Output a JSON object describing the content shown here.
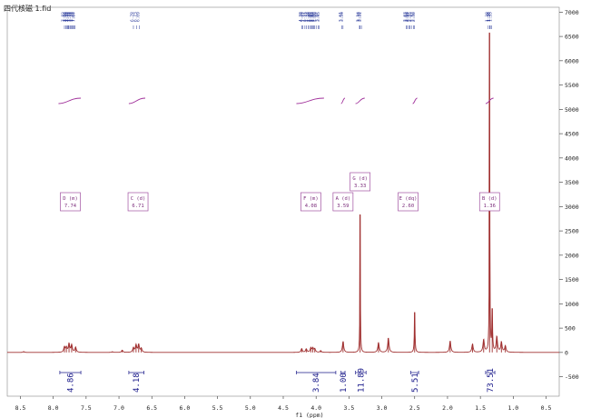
{
  "title": "四代核磁 1.fid",
  "chart_data": {
    "type": "line",
    "xlabel": "f1 (ppm)",
    "ylabel": "",
    "xlim": [
      8.7,
      0.3
    ],
    "ylim": [
      -900,
      7100
    ],
    "x_reversed": true,
    "grid": false,
    "x_ticks": [
      8.5,
      8.0,
      7.5,
      7.0,
      6.5,
      6.0,
      5.5,
      5.0,
      4.5,
      4.0,
      3.5,
      3.0,
      2.5,
      2.0,
      1.5,
      1.0,
      0.5
    ],
    "x_tick_labels": [
      "8.5",
      "8.0",
      "7.5",
      "7.0",
      "6.5",
      "6.0",
      "5.5",
      "5.0",
      "4.5",
      "4.0",
      "3.5",
      "3.0",
      "2.5",
      "2.0",
      "1.5",
      "1.0",
      "0.5"
    ],
    "y_ticks": [
      7000,
      6500,
      6000,
      5500,
      5000,
      4500,
      4000,
      3500,
      3000,
      2500,
      2000,
      1500,
      1000,
      500,
      0,
      -500
    ],
    "y_tick_labels": [
      "7000",
      "6500",
      "6000",
      "5500",
      "5000",
      "4500",
      "4000",
      "3500",
      "3000",
      "2500",
      "2000",
      "1500",
      "1000",
      "500",
      "0",
      "-500"
    ],
    "series": [
      {
        "color": "#a03030",
        "baseline_y": 0,
        "peaks": [
          {
            "x": 8.45,
            "h": 18
          },
          {
            "x": 7.83,
            "h": 110
          },
          {
            "x": 7.8,
            "h": 95
          },
          {
            "x": 7.76,
            "h": 175
          },
          {
            "x": 7.72,
            "h": 150
          },
          {
            "x": 7.66,
            "h": 105
          },
          {
            "x": 7.1,
            "h": 14
          },
          {
            "x": 6.95,
            "h": 45
          },
          {
            "x": 6.78,
            "h": 95
          },
          {
            "x": 6.74,
            "h": 150
          },
          {
            "x": 6.7,
            "h": 160
          },
          {
            "x": 6.66,
            "h": 80
          },
          {
            "x": 4.22,
            "h": 75
          },
          {
            "x": 4.15,
            "h": 70
          },
          {
            "x": 4.08,
            "h": 90
          },
          {
            "x": 4.05,
            "h": 85
          },
          {
            "x": 4.02,
            "h": 70
          },
          {
            "x": 3.93,
            "h": 35
          },
          {
            "x": 3.59,
            "h": 220
          },
          {
            "x": 3.33,
            "h": 2830
          },
          {
            "x": 3.05,
            "h": 200
          },
          {
            "x": 2.9,
            "h": 290
          },
          {
            "x": 2.5,
            "h": 820
          },
          {
            "x": 1.96,
            "h": 230
          },
          {
            "x": 1.62,
            "h": 170
          },
          {
            "x": 1.45,
            "h": 260
          },
          {
            "x": 1.36,
            "h": 6570
          },
          {
            "x": 1.32,
            "h": 900
          },
          {
            "x": 1.25,
            "h": 320
          },
          {
            "x": 1.18,
            "h": 210
          },
          {
            "x": 1.12,
            "h": 130
          }
        ]
      }
    ],
    "peak_ticks": [
      {
        "x": 7.83,
        "label": "7.83"
      },
      {
        "x": 7.81,
        "label": "7.81"
      },
      {
        "x": 7.79,
        "label": "7.79"
      },
      {
        "x": 7.78,
        "label": "7.78"
      },
      {
        "x": 7.77,
        "label": "7.77"
      },
      {
        "x": 7.76,
        "label": "7.76"
      },
      {
        "x": 7.74,
        "label": "7.74"
      },
      {
        "x": 7.73,
        "label": "7.73"
      },
      {
        "x": 7.71,
        "label": "7.71"
      },
      {
        "x": 7.7,
        "label": "7.70"
      },
      {
        "x": 7.68,
        "label": "7.68"
      },
      {
        "x": 7.67,
        "label": "7.67"
      },
      {
        "x": 6.78,
        "label": "6.78"
      },
      {
        "x": 6.73,
        "label": "6.73"
      },
      {
        "x": 6.69,
        "label": "6.69"
      },
      {
        "x": 4.22,
        "label": "4.22"
      },
      {
        "x": 4.2,
        "label": "4.20"
      },
      {
        "x": 4.17,
        "label": "4.17"
      },
      {
        "x": 4.15,
        "label": "4.15"
      },
      {
        "x": 4.12,
        "label": "4.12"
      },
      {
        "x": 4.1,
        "label": "4.10"
      },
      {
        "x": 4.08,
        "label": "4.08"
      },
      {
        "x": 4.07,
        "label": "4.07"
      },
      {
        "x": 4.05,
        "label": "4.05"
      },
      {
        "x": 4.04,
        "label": "4.04"
      },
      {
        "x": 4.02,
        "label": "4.02"
      },
      {
        "x": 4.0,
        "label": "4.00"
      },
      {
        "x": 3.97,
        "label": "3.97"
      },
      {
        "x": 3.95,
        "label": "3.95"
      },
      {
        "x": 3.61,
        "label": "3.61"
      },
      {
        "x": 3.59,
        "label": "3.59"
      },
      {
        "x": 3.34,
        "label": "3.34"
      },
      {
        "x": 3.33,
        "label": "3.33"
      },
      {
        "x": 3.31,
        "label": "3.31"
      },
      {
        "x": 2.63,
        "label": "2.63"
      },
      {
        "x": 2.61,
        "label": "2.61"
      },
      {
        "x": 2.59,
        "label": "2.59"
      },
      {
        "x": 2.57,
        "label": "2.57"
      },
      {
        "x": 2.55,
        "label": "2.55"
      },
      {
        "x": 2.52,
        "label": "2.52"
      },
      {
        "x": 2.5,
        "label": "2.50"
      },
      {
        "x": 1.38,
        "label": "1.38"
      },
      {
        "x": 1.36,
        "label": "1.36"
      },
      {
        "x": 1.35,
        "label": "1.35"
      },
      {
        "x": 1.33,
        "label": "1.33"
      }
    ],
    "multiplet_boxes": [
      {
        "x": 7.74,
        "line1": "D (m)",
        "line2": "7.74"
      },
      {
        "x": 6.71,
        "line1": "C (d)",
        "line2": "6.71"
      },
      {
        "x": 4.08,
        "line1": "F (m)",
        "line2": "4.08"
      },
      {
        "x": 3.59,
        "line1": "A (d)",
        "line2": "3.59"
      },
      {
        "x": 3.33,
        "line1": "G (d)",
        "line2": "3.33",
        "raised": true
      },
      {
        "x": 2.6,
        "line1": "E (dq)",
        "line2": "2.60"
      },
      {
        "x": 1.36,
        "line1": "B (d)",
        "line2": "1.36"
      }
    ],
    "integration_curves": [
      {
        "from": 7.92,
        "to": 7.58
      },
      {
        "from": 6.85,
        "to": 6.6
      },
      {
        "from": 4.3,
        "to": 3.88
      },
      {
        "from": 3.62,
        "to": 3.56
      },
      {
        "from": 3.4,
        "to": 3.26
      },
      {
        "from": 2.53,
        "to": 2.46
      },
      {
        "from": 1.42,
        "to": 1.3
      }
    ],
    "integrals": [
      {
        "from": 7.9,
        "to": 7.58,
        "label": "4.86"
      },
      {
        "from": 6.85,
        "to": 6.62,
        "label": "4.18"
      },
      {
        "from": 4.3,
        "to": 3.7,
        "label": "3.84"
      },
      {
        "from": 3.62,
        "to": 3.56,
        "label": "1.00"
      },
      {
        "from": 3.4,
        "to": 3.24,
        "label": "11.89"
      },
      {
        "from": 2.56,
        "to": 2.44,
        "label": "5.51"
      },
      {
        "from": 1.42,
        "to": 1.28,
        "label": "73.51"
      }
    ]
  }
}
